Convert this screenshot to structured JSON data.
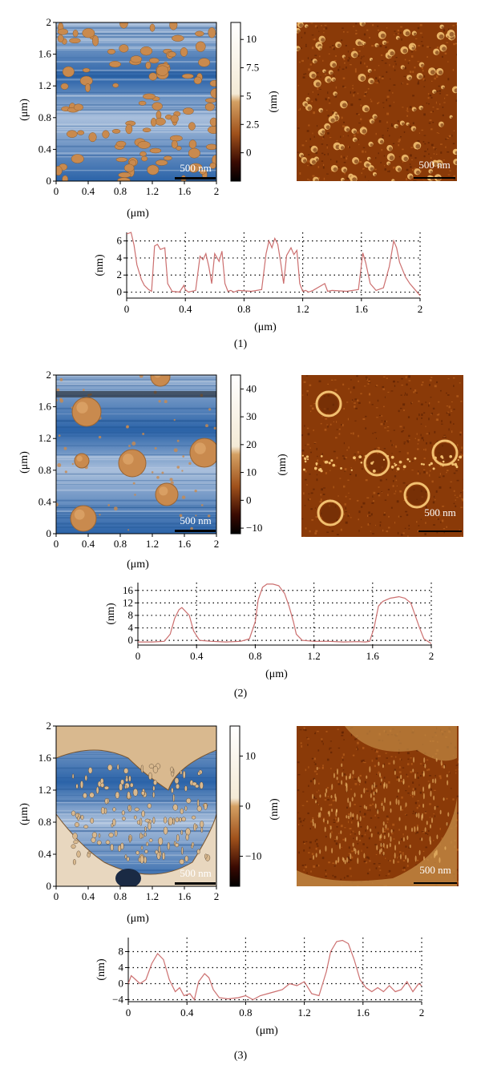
{
  "figure": {
    "panels": [
      {
        "label": "(1)",
        "height_map": {
          "xlabel": "(μm)",
          "ylabel": "(μm)",
          "ticks": [
            "0",
            "0.4",
            "0.8",
            "1.2",
            "1.6",
            "2"
          ],
          "scalebar_label": "500 nm",
          "colorbar_label": "(nm)",
          "colorbar_ticks": [
            "10",
            "7.5",
            "5",
            "2.5",
            "0"
          ],
          "colorbar_values": [
            10,
            7.5,
            5,
            2.5,
            0
          ],
          "colorbar_range": [
            -2.5,
            11.5
          ],
          "texture": "particles-small",
          "colors": {
            "low": "#2b63a8",
            "high": "#c98a4e"
          }
        },
        "phase_map": {
          "scalebar_label": "500 nm",
          "texture": "particles-small",
          "colors": {
            "base": "#8a3a08",
            "highlight": "#f2c070"
          }
        },
        "profile": {
          "xlabel": "(μm)",
          "ylabel": "(nm)",
          "xticks": [
            "0",
            "0.4",
            "0.8",
            "1.2",
            "1.6",
            "2"
          ],
          "yticks": [
            "6",
            "4",
            "2",
            "0"
          ],
          "ytick_values": [
            6,
            4,
            2,
            0
          ],
          "xlim": [
            0,
            2
          ],
          "ylim": [
            -0.7,
            7.0
          ],
          "line_color": "#cc6f6f",
          "chart_data": {
            "type": "line",
            "x": [
              0,
              0.03,
              0.05,
              0.07,
              0.1,
              0.12,
              0.15,
              0.17,
              0.19,
              0.21,
              0.23,
              0.26,
              0.28,
              0.31,
              0.36,
              0.39,
              0.4,
              0.42,
              0.47,
              0.5,
              0.52,
              0.54,
              0.56,
              0.58,
              0.6,
              0.63,
              0.65,
              0.67,
              0.69,
              0.71,
              0.73,
              0.76,
              0.85,
              0.92,
              0.95,
              0.97,
              0.99,
              1.01,
              1.03,
              1.05,
              1.07,
              1.09,
              1.12,
              1.14,
              1.16,
              1.18,
              1.2,
              1.22,
              1.24,
              1.27,
              1.35,
              1.37,
              1.4,
              1.5,
              1.58,
              1.61,
              1.63,
              1.66,
              1.7,
              1.75,
              1.79,
              1.82,
              1.84,
              1.86,
              1.9,
              1.93,
              1.96,
              2.0
            ],
            "y": [
              6.8,
              7.0,
              5.5,
              3.2,
              1.5,
              0.8,
              0.3,
              0.1,
              5.4,
              5.6,
              5.0,
              5.2,
              1.0,
              0.1,
              0.0,
              0.8,
              0.3,
              0.0,
              0.2,
              4.2,
              3.8,
              4.5,
              3.0,
              1.0,
              4.5,
              3.6,
              4.8,
              1.0,
              0.1,
              0.2,
              0.0,
              0.2,
              0.1,
              0.3,
              4.5,
              6.0,
              5.2,
              6.3,
              5.6,
              3.5,
              1.0,
              4.3,
              5.2,
              4.4,
              4.9,
              1.0,
              0.1,
              0.2,
              0.0,
              0.2,
              1.0,
              0.1,
              0.2,
              0.1,
              0.3,
              4.6,
              3.4,
              1.0,
              0.2,
              0.5,
              3.0,
              6.0,
              5.2,
              3.5,
              1.8,
              1.0,
              0.4,
              -0.4
            ]
          }
        }
      },
      {
        "label": "(2)",
        "height_map": {
          "xlabel": "(μm)",
          "ylabel": "(μm)",
          "ticks": [
            "0",
            "0.4",
            "0.8",
            "1.2",
            "1.6",
            "2"
          ],
          "scalebar_label": "500 nm",
          "colorbar_label": "(nm)",
          "colorbar_ticks": [
            "40",
            "30",
            "20",
            "10",
            "0",
            "−10"
          ],
          "colorbar_values": [
            40,
            30,
            20,
            10,
            0,
            -10
          ],
          "colorbar_range": [
            -12,
            45
          ],
          "texture": "particles-large",
          "colors": {
            "low": "#2b63a8",
            "high": "#c98a4e"
          }
        },
        "phase_map": {
          "scalebar_label": "500 nm",
          "texture": "particles-large",
          "colors": {
            "base": "#8a3a08",
            "highlight": "#f2c070"
          }
        },
        "profile": {
          "xlabel": "(μm)",
          "ylabel": "(nm)",
          "xticks": [
            "0",
            "0.4",
            "0.8",
            "1.2",
            "1.6",
            "2"
          ],
          "yticks": [
            "16",
            "12",
            "8",
            "4",
            "0"
          ],
          "ytick_values": [
            16,
            12,
            8,
            4,
            0
          ],
          "xlim": [
            0,
            2
          ],
          "ylim": [
            -1.5,
            18.5
          ],
          "line_color": "#cc6f6f",
          "chart_data": {
            "type": "line",
            "x": [
              0,
              0.1,
              0.18,
              0.22,
              0.25,
              0.28,
              0.3,
              0.32,
              0.35,
              0.38,
              0.42,
              0.5,
              0.6,
              0.7,
              0.76,
              0.8,
              0.82,
              0.85,
              0.88,
              0.92,
              0.96,
              1.0,
              1.03,
              1.06,
              1.08,
              1.12,
              1.2,
              1.3,
              1.4,
              1.5,
              1.55,
              1.58,
              1.61,
              1.64,
              1.67,
              1.72,
              1.78,
              1.82,
              1.86,
              1.89,
              1.92,
              1.95,
              2.0
            ],
            "y": [
              -0.5,
              -0.5,
              -0.3,
              2.0,
              7.0,
              9.8,
              10.5,
              9.5,
              8.0,
              3.0,
              0.0,
              -0.3,
              -0.5,
              -0.3,
              0.5,
              6.0,
              13.0,
              17.0,
              18.0,
              18.0,
              17.5,
              15.0,
              11.0,
              6.0,
              2.0,
              0.0,
              -0.3,
              -0.3,
              -0.5,
              -0.4,
              -0.5,
              -0.3,
              4.0,
              11.0,
              12.5,
              13.5,
              14.0,
              13.5,
              12.0,
              8.0,
              4.0,
              0.5,
              -1.0
            ]
          }
        }
      },
      {
        "label": "(3)",
        "height_map": {
          "xlabel": "(μm)",
          "ylabel": "(μm)",
          "ticks": [
            "0",
            "0.4",
            "0.8",
            "1.2",
            "1.6",
            "2"
          ],
          "scalebar_label": "500 nm",
          "colorbar_label": "(nm)",
          "colorbar_ticks": [
            "10",
            "0",
            "−10"
          ],
          "colorbar_values": [
            10,
            0,
            -10
          ],
          "colorbar_range": [
            -16,
            16
          ],
          "texture": "film",
          "colors": {
            "low": "#2b63a8",
            "high": "#c98a4e"
          }
        },
        "phase_map": {
          "scalebar_label": "500 nm",
          "texture": "film",
          "colors": {
            "base": "#8a3a08",
            "highlight": "#f2c070"
          }
        },
        "profile": {
          "xlabel": "(μm)",
          "ylabel": "(nm)",
          "xticks": [
            "0",
            "0.4",
            "0.8",
            "1.2",
            "1.6",
            "2"
          ],
          "yticks": [
            "8",
            "4",
            "0",
            "−4"
          ],
          "ytick_values": [
            8,
            4,
            0,
            -4
          ],
          "xlim": [
            0,
            2
          ],
          "ylim": [
            -4.5,
            11.5
          ],
          "line_color": "#cc6f6f",
          "chart_data": {
            "type": "line",
            "x": [
              0,
              0.02,
              0.05,
              0.08,
              0.12,
              0.16,
              0.2,
              0.24,
              0.28,
              0.32,
              0.35,
              0.38,
              0.42,
              0.45,
              0.48,
              0.52,
              0.55,
              0.58,
              0.62,
              0.68,
              0.75,
              0.8,
              0.85,
              0.9,
              0.95,
              1.0,
              1.05,
              1.1,
              1.15,
              1.2,
              1.25,
              1.3,
              1.35,
              1.38,
              1.42,
              1.46,
              1.5,
              1.54,
              1.58,
              1.62,
              1.66,
              1.7,
              1.74,
              1.78,
              1.82,
              1.86,
              1.9,
              1.94,
              1.98,
              2.0
            ],
            "y": [
              0.0,
              2.0,
              1.0,
              0.0,
              1.0,
              5.0,
              7.5,
              6.0,
              1.0,
              -2.0,
              -1.0,
              -3.0,
              -2.5,
              -4.0,
              0.5,
              2.5,
              1.5,
              -1.5,
              -3.5,
              -3.8,
              -3.5,
              -3.0,
              -4.0,
              -3.0,
              -2.5,
              -2.0,
              -1.5,
              0.0,
              -0.5,
              0.5,
              -2.5,
              -3.0,
              3.0,
              8.0,
              10.5,
              10.8,
              10.0,
              6.0,
              1.0,
              -1.0,
              -2.0,
              -1.0,
              -2.0,
              -0.5,
              -2.0,
              -1.5,
              0.5,
              -2.0,
              0.0,
              -0.5
            ]
          }
        }
      }
    ]
  }
}
